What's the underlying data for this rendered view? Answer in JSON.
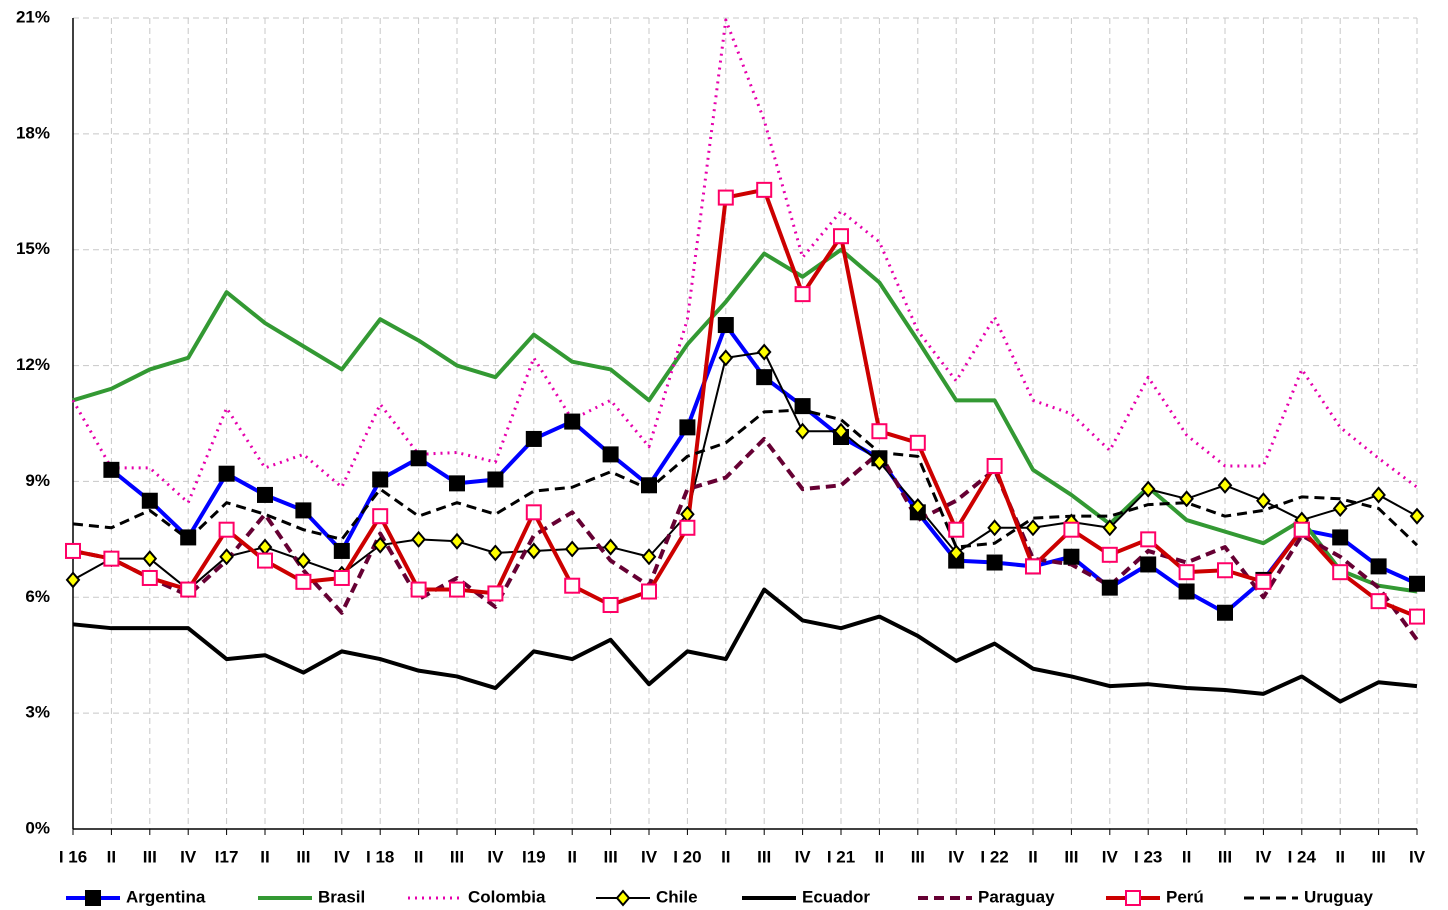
{
  "chart_data": {
    "type": "line",
    "categories": [
      "I 16",
      "II",
      "III",
      "IV",
      "I17",
      "II",
      "III",
      "IV",
      "I 18",
      "II",
      "III",
      "IV",
      "I19",
      "II",
      "III",
      "IV",
      "I 20",
      "II",
      "III",
      "IV",
      "I 21",
      "II",
      "III",
      "IV",
      "I 22",
      "II",
      "III",
      "IV",
      "I 23",
      "II",
      "III",
      "IV",
      "I 24",
      "II",
      "III",
      "IV"
    ],
    "ylim": [
      0,
      21
    ],
    "yticks": [
      {
        "value": 0,
        "label": "0%"
      },
      {
        "value": 3,
        "label": "3%"
      },
      {
        "value": 6,
        "label": "6%"
      },
      {
        "value": 9,
        "label": "9%"
      },
      {
        "value": 12,
        "label": "12%"
      },
      {
        "value": 15,
        "label": "15%"
      },
      {
        "value": 18,
        "label": "18%"
      },
      {
        "value": 21,
        "label": "21%"
      }
    ],
    "grid": true,
    "legend": "bottom",
    "series": [
      {
        "name": "Argentina",
        "color": "#0000ff",
        "width": 4,
        "dash": "solid",
        "marker": "square",
        "marker_fill": "#000000",
        "marker_stroke": "#000000",
        "values": [
          null,
          9.3,
          8.5,
          7.55,
          9.2,
          8.65,
          8.25,
          7.2,
          9.05,
          9.6,
          8.95,
          9.05,
          10.1,
          10.55,
          9.7,
          8.9,
          10.4,
          13.05,
          11.7,
          10.95,
          10.15,
          9.6,
          8.2,
          6.95,
          6.9,
          6.8,
          7.05,
          6.25,
          6.85,
          6.15,
          5.6,
          6.45,
          7.75,
          7.55,
          6.8,
          6.35
        ]
      },
      {
        "name": "Brasil",
        "color": "#339933",
        "width": 4,
        "dash": "solid",
        "values": [
          11.1,
          11.4,
          11.9,
          12.2,
          13.9,
          13.1,
          12.5,
          11.9,
          13.2,
          12.65,
          12.0,
          11.7,
          12.8,
          12.1,
          11.9,
          11.1,
          12.55,
          13.65,
          14.9,
          14.3,
          15.0,
          14.15,
          12.65,
          11.1,
          11.1,
          9.3,
          8.65,
          7.9,
          8.85,
          8.0,
          7.7,
          7.4,
          8.0,
          6.7,
          6.3,
          6.15
        ]
      },
      {
        "name": "Colombia",
        "color": "#e600ac",
        "width": 3,
        "dash": "dotted",
        "values": [
          11.1,
          9.35,
          9.35,
          8.45,
          10.9,
          9.35,
          9.7,
          8.85,
          11.0,
          9.7,
          9.75,
          9.5,
          12.2,
          10.6,
          11.1,
          9.9,
          13.2,
          20.95,
          18.35,
          14.8,
          16.0,
          15.2,
          12.9,
          11.6,
          13.25,
          11.1,
          10.75,
          9.8,
          11.7,
          10.2,
          9.4,
          9.4,
          11.9,
          10.4,
          9.6,
          8.85
        ]
      },
      {
        "name": "Chile",
        "color": "#000000",
        "width": 2,
        "dash": "solid",
        "marker": "diamond",
        "marker_fill": "#ffff00",
        "marker_stroke": "#000000",
        "values": [
          6.45,
          7.0,
          7.0,
          6.2,
          7.05,
          7.3,
          6.95,
          6.6,
          7.35,
          7.5,
          7.45,
          7.15,
          7.2,
          7.25,
          7.3,
          7.05,
          8.15,
          12.2,
          12.35,
          10.3,
          10.3,
          9.5,
          8.35,
          7.15,
          7.8,
          7.8,
          7.95,
          7.8,
          8.8,
          8.55,
          8.9,
          8.5,
          8.0,
          8.3,
          8.65,
          8.1
        ]
      },
      {
        "name": "Ecuador",
        "color": "#000000",
        "width": 4,
        "dash": "solid",
        "values": [
          5.3,
          5.2,
          5.2,
          5.2,
          4.4,
          4.5,
          4.05,
          4.6,
          4.4,
          4.1,
          3.95,
          3.65,
          4.6,
          4.4,
          4.9,
          3.75,
          4.6,
          4.4,
          6.2,
          5.4,
          5.2,
          5.5,
          5.0,
          4.35,
          4.8,
          4.15,
          3.95,
          3.7,
          3.75,
          3.65,
          3.6,
          3.5,
          3.95,
          3.3,
          3.8,
          3.7
        ]
      },
      {
        "name": "Paraguay",
        "color": "#660033",
        "width": 4,
        "dash": "dashed",
        "values": [
          7.2,
          7.0,
          6.5,
          6.05,
          6.95,
          8.15,
          6.7,
          5.6,
          7.65,
          5.95,
          6.5,
          5.75,
          7.6,
          8.2,
          6.95,
          6.3,
          8.8,
          9.1,
          10.1,
          8.8,
          8.9,
          9.75,
          8.0,
          8.5,
          9.3,
          7.0,
          6.85,
          6.3,
          7.2,
          6.9,
          7.3,
          6.0,
          7.6,
          7.05,
          6.25,
          4.9
        ]
      },
      {
        "name": "Perú",
        "color": "#cc0000",
        "width": 4,
        "dash": "solid",
        "marker": "square",
        "marker_fill": "#ffffff",
        "marker_stroke": "#ff0066",
        "values": [
          7.2,
          7.0,
          6.5,
          6.2,
          7.75,
          6.95,
          6.4,
          6.5,
          8.1,
          6.2,
          6.2,
          6.1,
          8.2,
          6.3,
          5.8,
          6.15,
          7.8,
          16.35,
          16.55,
          13.85,
          15.35,
          10.3,
          10.0,
          7.75,
          9.4,
          6.8,
          7.75,
          7.1,
          7.5,
          6.65,
          6.7,
          6.4,
          7.75,
          6.65,
          5.9,
          5.5
        ]
      },
      {
        "name": "Uruguay",
        "color": "#000000",
        "width": 3,
        "dash": "dashed",
        "values": [
          7.9,
          7.8,
          8.25,
          7.5,
          8.45,
          8.15,
          7.75,
          7.5,
          8.8,
          8.1,
          8.45,
          8.15,
          8.75,
          8.85,
          9.25,
          8.8,
          9.65,
          10.0,
          10.8,
          10.85,
          10.6,
          9.75,
          9.65,
          7.3,
          7.4,
          8.05,
          8.1,
          8.1,
          8.4,
          8.45,
          8.1,
          8.25,
          8.6,
          8.55,
          8.3,
          7.35
        ]
      }
    ]
  }
}
